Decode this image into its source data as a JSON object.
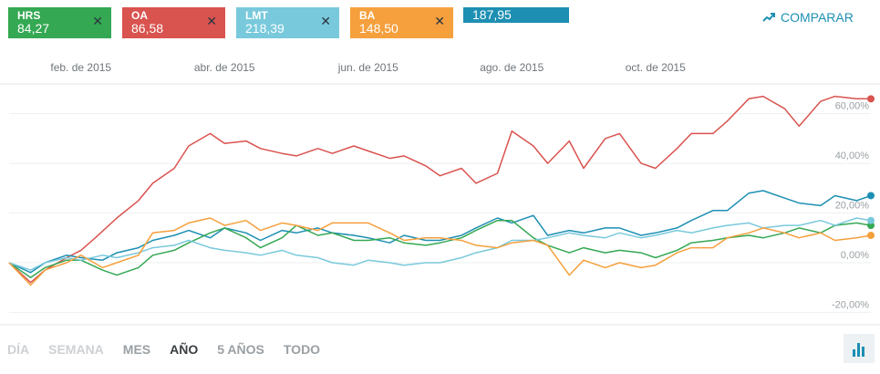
{
  "tickers": [
    {
      "symbol": "HRS",
      "value": "84,27",
      "color": "#34a853"
    },
    {
      "symbol": "OA",
      "value": "86,58",
      "color": "#d9534f"
    },
    {
      "symbol": "LMT",
      "value": "218,39",
      "color": "#79c9dc"
    },
    {
      "symbol": "BA",
      "value": "148,50",
      "color": "#f5a03d"
    }
  ],
  "selected_ticker": {
    "value": "187,95",
    "color": "#1d8fb3"
  },
  "compare_label": "COMPARAR",
  "ranges": [
    "DÍA",
    "SEMANA",
    "MES",
    "AÑO",
    "5 AÑOS",
    "TODO"
  ],
  "active_range": "AÑO",
  "chart_data": {
    "type": "line",
    "x_tick_labels": [
      "feb. de 2015",
      "abr. de 2015",
      "jun. de 2015",
      "ago. de 2015",
      "oct. de 2015"
    ],
    "y_tick_labels": [
      "60,00%",
      "40,00%",
      "20,00%",
      "0,00%",
      "-20,00%"
    ],
    "y_ticks": [
      60,
      40,
      20,
      0,
      -20
    ],
    "ylim": [
      -25,
      72
    ],
    "x_range": [
      0,
      12
    ],
    "x_tick_positions": [
      1,
      3,
      5,
      7,
      9
    ],
    "grid": true,
    "series": [
      {
        "name": "OA",
        "color": "#d9534f",
        "x": [
          0,
          0.3,
          0.5,
          0.8,
          1.0,
          1.2,
          1.5,
          1.8,
          2.0,
          2.3,
          2.5,
          2.8,
          3.0,
          3.3,
          3.5,
          3.8,
          4.0,
          4.3,
          4.5,
          4.8,
          5.0,
          5.3,
          5.5,
          5.8,
          6.0,
          6.3,
          6.5,
          6.8,
          7.0,
          7.3,
          7.5,
          7.8,
          8.0,
          8.3,
          8.5,
          8.8,
          9.0,
          9.3,
          9.5,
          9.8,
          10.0,
          10.3,
          10.5,
          10.8,
          11.0,
          11.3,
          11.5,
          11.8,
          12.0
        ],
        "y": [
          0,
          -8,
          -3,
          2,
          5,
          10,
          18,
          25,
          32,
          38,
          47,
          52,
          48,
          49,
          46,
          44,
          43,
          46,
          44,
          47,
          45,
          42,
          43,
          39,
          35,
          38,
          32,
          36,
          53,
          47,
          40,
          49,
          38,
          50,
          52,
          40,
          38,
          46,
          52,
          52,
          57,
          66,
          67,
          62,
          55,
          65,
          67,
          66,
          66
        ]
      },
      {
        "name": "",
        "color": "#1d8fb3",
        "x": [
          0,
          0.3,
          0.5,
          0.8,
          1.0,
          1.3,
          1.5,
          1.8,
          2.0,
          2.3,
          2.5,
          2.8,
          3.0,
          3.3,
          3.5,
          3.8,
          4.0,
          4.3,
          4.5,
          4.8,
          5.0,
          5.3,
          5.5,
          5.8,
          6.0,
          6.3,
          6.5,
          6.8,
          7.0,
          7.3,
          7.5,
          7.8,
          8.0,
          8.3,
          8.5,
          8.8,
          9.0,
          9.3,
          9.5,
          9.8,
          10.0,
          10.3,
          10.5,
          10.8,
          11.0,
          11.3,
          11.5,
          11.8,
          12.0
        ],
        "y": [
          0,
          -4,
          0,
          3,
          2,
          1,
          4,
          6,
          9,
          11,
          13,
          10,
          14,
          12,
          9,
          13,
          12,
          14,
          12,
          11,
          10,
          8,
          11,
          9,
          9,
          11,
          14,
          18,
          16,
          19,
          11,
          13,
          12,
          14,
          14,
          11,
          12,
          14,
          17,
          21,
          21,
          28,
          29,
          26,
          24,
          23,
          27,
          25,
          27
        ]
      },
      {
        "name": "HRS",
        "color": "#34a853",
        "x": [
          0,
          0.3,
          0.5,
          0.8,
          1.0,
          1.3,
          1.5,
          1.8,
          2.0,
          2.3,
          2.5,
          2.8,
          3.0,
          3.3,
          3.5,
          3.8,
          4.0,
          4.3,
          4.5,
          4.8,
          5.0,
          5.3,
          5.5,
          5.8,
          6.0,
          6.3,
          6.5,
          6.8,
          7.0,
          7.3,
          7.5,
          7.8,
          8.0,
          8.3,
          8.5,
          8.8,
          9.0,
          9.3,
          9.5,
          9.8,
          10.0,
          10.3,
          10.5,
          10.8,
          11.0,
          11.3,
          11.5,
          11.8,
          12.0
        ],
        "y": [
          0,
          -6,
          -2,
          1,
          1,
          -3,
          -5,
          -2,
          3,
          5,
          8,
          12,
          14,
          10,
          6,
          10,
          15,
          11,
          12,
          9,
          9,
          10,
          8,
          7,
          8,
          10,
          13,
          17,
          17,
          10,
          7,
          4,
          6,
          4,
          5,
          4,
          2,
          5,
          8,
          9,
          10,
          11,
          10,
          12,
          14,
          12,
          15,
          16,
          15
        ]
      },
      {
        "name": "LMT",
        "color": "#79c9dc",
        "x": [
          0,
          0.3,
          0.5,
          0.8,
          1.0,
          1.3,
          1.5,
          1.8,
          2.0,
          2.3,
          2.5,
          2.8,
          3.0,
          3.3,
          3.5,
          3.8,
          4.0,
          4.3,
          4.5,
          4.8,
          5.0,
          5.3,
          5.5,
          5.8,
          6.0,
          6.3,
          6.5,
          6.8,
          7.0,
          7.3,
          7.5,
          7.8,
          8.0,
          8.3,
          8.5,
          8.8,
          9.0,
          9.3,
          9.5,
          9.8,
          10.0,
          10.3,
          10.5,
          10.8,
          11.0,
          11.3,
          11.5,
          11.8,
          12.0
        ],
        "y": [
          0,
          -3,
          0,
          2,
          1,
          3,
          2,
          4,
          6,
          7,
          9,
          6,
          5,
          4,
          3,
          5,
          3,
          2,
          0,
          -1,
          1,
          0,
          -1,
          0,
          0,
          2,
          4,
          6,
          9,
          9,
          10,
          12,
          11,
          10,
          12,
          10,
          11,
          13,
          12,
          14,
          15,
          16,
          14,
          15,
          15,
          17,
          15,
          18,
          17
        ]
      },
      {
        "name": "BA",
        "color": "#f5a03d",
        "x": [
          0,
          0.3,
          0.5,
          0.8,
          1.0,
          1.3,
          1.5,
          1.8,
          2.0,
          2.3,
          2.5,
          2.8,
          3.0,
          3.3,
          3.5,
          3.8,
          4.0,
          4.3,
          4.5,
          4.8,
          5.0,
          5.3,
          5.5,
          5.8,
          6.0,
          6.3,
          6.5,
          6.8,
          7.0,
          7.3,
          7.5,
          7.8,
          8.0,
          8.3,
          8.5,
          8.8,
          9.0,
          9.3,
          9.5,
          9.8,
          10.0,
          10.3,
          10.5,
          10.8,
          11.0,
          11.3,
          11.5,
          11.8,
          12.0
        ],
        "y": [
          0,
          -9,
          -3,
          0,
          3,
          -2,
          0,
          3,
          12,
          13,
          16,
          18,
          15,
          17,
          13,
          16,
          15,
          13,
          16,
          16,
          16,
          12,
          9,
          10,
          10,
          9,
          7,
          6,
          8,
          9,
          7,
          -5,
          1,
          -2,
          0,
          -2,
          -1,
          4,
          6,
          6,
          10,
          12,
          14,
          12,
          10,
          12,
          9,
          10,
          11
        ]
      }
    ]
  }
}
